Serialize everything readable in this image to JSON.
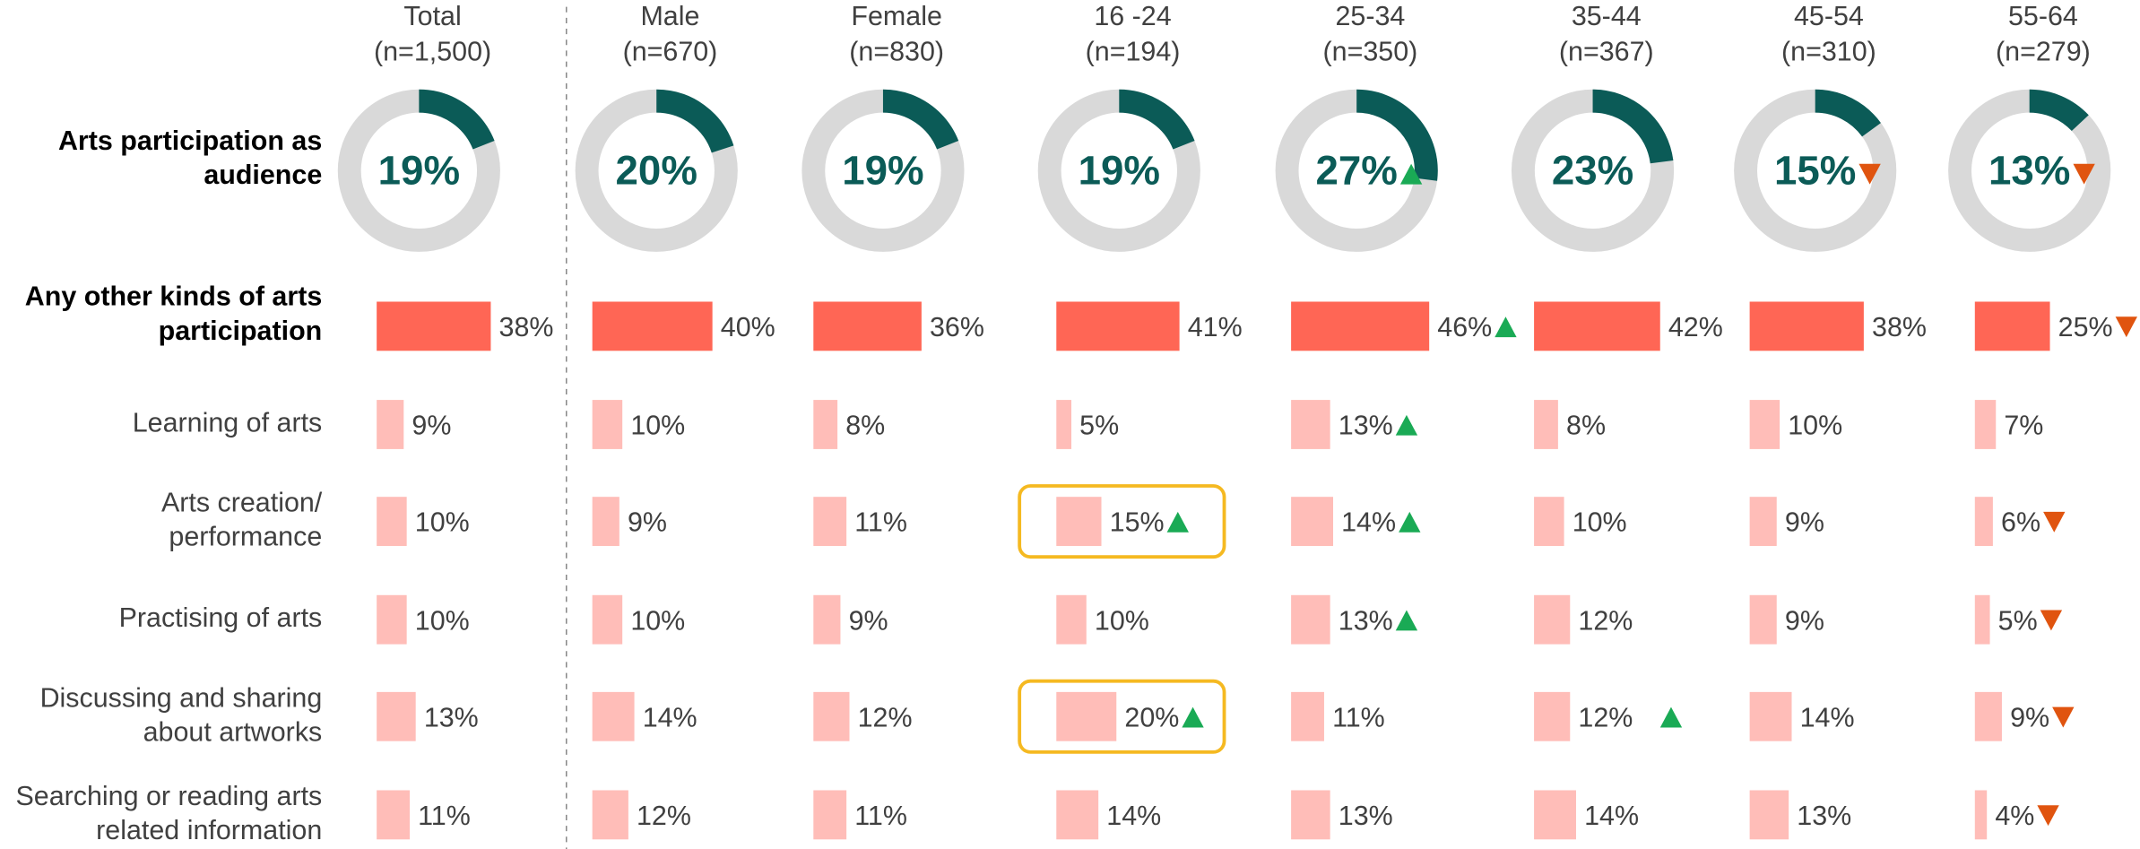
{
  "chart_data": {
    "type": "bar-grid",
    "columns": [
      {
        "name": "Total",
        "n": "(n=1,500)"
      },
      {
        "name": "Male",
        "n": "(n=670)"
      },
      {
        "name": "Female",
        "n": "(n=830)"
      },
      {
        "name": "16 -24",
        "n": "(n=194)"
      },
      {
        "name": "25-34",
        "n": "(n=350)"
      },
      {
        "name": "35-44",
        "n": "(n=367)"
      },
      {
        "name": "45-54",
        "n": "(n=310)"
      },
      {
        "name": "55-64",
        "n": "(n=279)"
      }
    ],
    "series": [
      {
        "name": [
          "Arts participation as",
          "audience"
        ],
        "style": "donut",
        "color": "#0b5b57",
        "values": [
          19,
          20,
          19,
          19,
          27,
          23,
          15,
          13
        ],
        "value_labels": [
          "19%",
          "20%",
          "19%",
          "19%",
          "27%",
          "23%",
          "15%",
          "13%"
        ],
        "markers": [
          null,
          null,
          null,
          null,
          "up",
          null,
          "down",
          "down"
        ]
      },
      {
        "name": [
          "Any other kinds of arts",
          "participation"
        ],
        "style": "main",
        "color": "#ff6655",
        "values": [
          38,
          40,
          36,
          41,
          46,
          42,
          38,
          25
        ],
        "value_labels": [
          "38%",
          "40%",
          "36%",
          "41%",
          "46%",
          "42%",
          "38%",
          "25%"
        ],
        "markers": [
          null,
          null,
          null,
          null,
          "up",
          null,
          null,
          "down"
        ]
      },
      {
        "name": [
          "Learning of arts"
        ],
        "style": "sub",
        "color": "#ffbdb8",
        "values": [
          9,
          10,
          8,
          5,
          13,
          8,
          10,
          7
        ],
        "value_labels": [
          "9%",
          "10%",
          "8%",
          "5%",
          "13%",
          "8%",
          "10%",
          "7%"
        ],
        "markers": [
          null,
          null,
          null,
          null,
          "up",
          null,
          null,
          null
        ]
      },
      {
        "name": [
          "Arts creation/",
          "performance"
        ],
        "style": "sub",
        "color": "#ffbdb8",
        "values": [
          10,
          9,
          11,
          15,
          14,
          10,
          9,
          6
        ],
        "value_labels": [
          "10%",
          "9%",
          "11%",
          "15%",
          "14%",
          "10%",
          "9%",
          "6%"
        ],
        "markers": [
          null,
          null,
          null,
          "up",
          "up",
          null,
          null,
          "down"
        ]
      },
      {
        "name": [
          "Practising of arts"
        ],
        "style": "sub",
        "color": "#ffbdb8",
        "values": [
          10,
          10,
          9,
          10,
          13,
          12,
          9,
          5
        ],
        "value_labels": [
          "10%",
          "10%",
          "9%",
          "10%",
          "13%",
          "12%",
          "9%",
          "5%"
        ],
        "markers": [
          null,
          null,
          null,
          null,
          "up",
          null,
          null,
          "down"
        ]
      },
      {
        "name": [
          "Discussing and sharing",
          "about artworks"
        ],
        "style": "sub",
        "color": "#ffbdb8",
        "values": [
          13,
          14,
          12,
          20,
          11,
          12,
          14,
          9
        ],
        "value_labels": [
          "13%",
          "14%",
          "12%",
          "20%",
          "11%",
          "12%",
          "14%",
          "9%"
        ],
        "markers": [
          null,
          null,
          null,
          "up",
          null,
          "up",
          null,
          "down"
        ]
      },
      {
        "name": [
          "Searching or reading arts",
          "related information"
        ],
        "style": "sub",
        "color": "#ffbdb8",
        "values": [
          11,
          12,
          11,
          14,
          13,
          14,
          13,
          4
        ],
        "value_labels": [
          "11%",
          "12%",
          "11%",
          "14%",
          "13%",
          "14%",
          "13%",
          "4%"
        ],
        "markers": [
          null,
          null,
          null,
          null,
          null,
          null,
          null,
          "down"
        ]
      }
    ],
    "track_color": "#d9d9d9",
    "up_color": "#1aaa55",
    "down_color": "#e0540f",
    "highlight_color": "#f5b921",
    "highlights": [
      {
        "row": 3,
        "col": 3
      },
      {
        "row": 5,
        "col": 3
      }
    ]
  }
}
